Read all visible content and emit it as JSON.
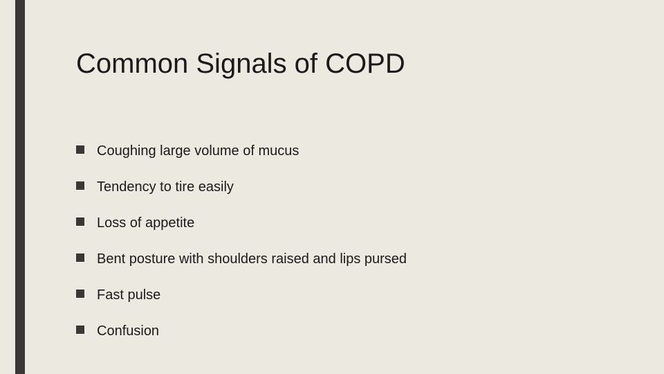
{
  "slide": {
    "background_color": "#ece9e0",
    "sidebar_color": "#3a3837",
    "title": "Common Signals of COPD",
    "title_fontsize": 40,
    "title_color": "#1a1a1a",
    "bullet_color": "#3a3837",
    "bullet_size": 12,
    "item_fontsize": 20,
    "item_color": "#1a1a1a",
    "items": [
      "Coughing large volume of mucus",
      "Tendency to tire easily",
      "Loss of appetite",
      "Bent posture with shoulders raised and lips pursed",
      "Fast pulse",
      "Confusion"
    ]
  }
}
